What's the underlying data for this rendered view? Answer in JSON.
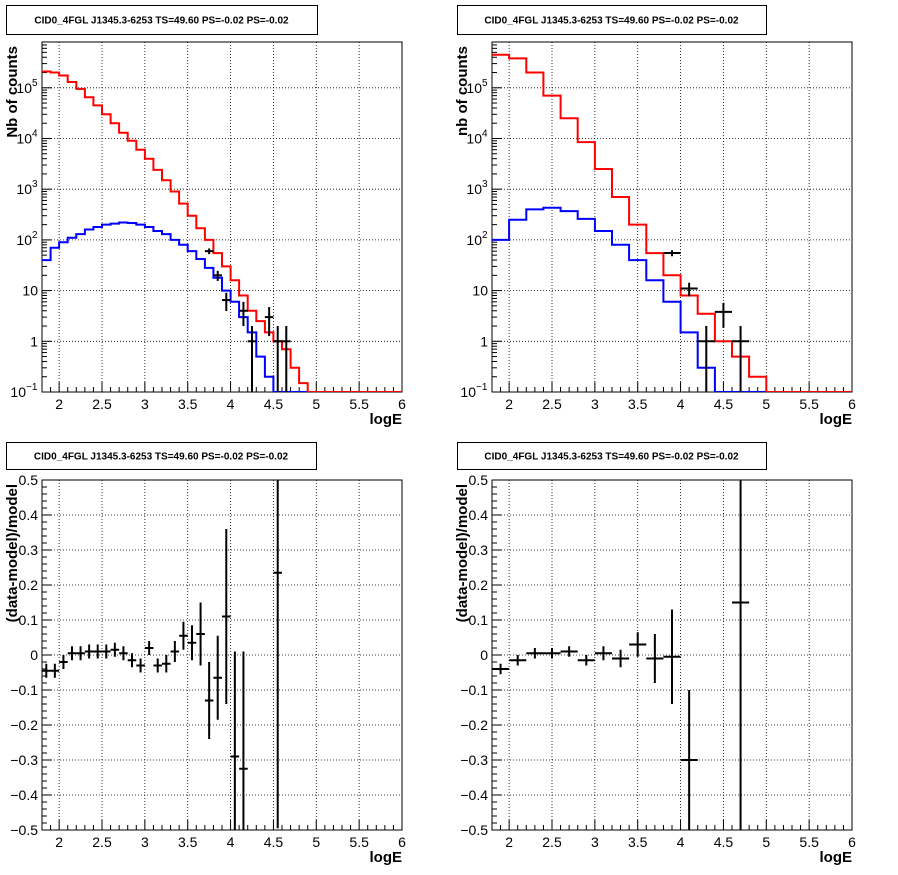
{
  "colors": {
    "data": "#000000",
    "total_model": "#ff0000",
    "source_model": "#0000ff",
    "grid": "#000000",
    "title_box": "#000000"
  },
  "chart_data": [
    {
      "type": "line",
      "title": "CID0_4FGL J1345.3-6253 TS=49.60 PS=-0.02 PS=-0.02",
      "xlabel": "logE",
      "ylabel": "Nb of counts",
      "xlim": [
        1.8,
        6
      ],
      "ylim": [
        0.1,
        800000
      ],
      "yscale": "log",
      "grid": true,
      "x_ticks": [
        "2",
        "2.5",
        "3",
        "3.5",
        "4",
        "4.5",
        "5",
        "5.5",
        "6"
      ],
      "y_ticks": [
        {
          "v": 0.1,
          "label": "10",
          "sup": "−1"
        },
        {
          "v": 1,
          "label": "1",
          "sup": ""
        },
        {
          "v": 10,
          "label": "10",
          "sup": ""
        },
        {
          "v": 100,
          "label": "10",
          "sup": "2"
        },
        {
          "v": 1000,
          "label": "10",
          "sup": "3"
        },
        {
          "v": 10000,
          "label": "10",
          "sup": "4"
        },
        {
          "v": 100000,
          "label": "10",
          "sup": "5"
        }
      ],
      "bin_edges": [
        1.8,
        1.9,
        2.0,
        2.1,
        2.2,
        2.3,
        2.4,
        2.5,
        2.6,
        2.7,
        2.8,
        2.9,
        3.0,
        3.1,
        3.2,
        3.3,
        3.4,
        3.5,
        3.6,
        3.7,
        3.8,
        3.9,
        4.0,
        4.1,
        4.2,
        4.3,
        4.4,
        4.5,
        4.6,
        4.7,
        4.8,
        4.9,
        5.0,
        5.1,
        5.2,
        5.3,
        5.4,
        5.5,
        5.6,
        5.7,
        5.8,
        5.9,
        6.0
      ],
      "series": [
        {
          "values": [
            210000,
            200000,
            175000,
            130000,
            95000,
            65000,
            45000,
            30000,
            20000,
            13000,
            9000,
            6000,
            4000,
            2400,
            1500,
            900,
            520,
            300,
            170,
            100,
            55,
            30,
            16,
            8,
            4,
            2.5,
            1.5,
            1,
            0.7,
            0.3,
            0.15,
            0.1,
            0.1,
            0.1,
            0.1,
            0.1,
            0.1,
            0.1,
            0.1,
            0.1,
            0.1,
            0.1
          ]
        },
        {
          "values": [
            40,
            70,
            90,
            110,
            130,
            160,
            180,
            200,
            210,
            220,
            215,
            200,
            180,
            150,
            130,
            100,
            80,
            60,
            42,
            28,
            18,
            10,
            6,
            3,
            1.5,
            0.5,
            0.2,
            0.1,
            0.1,
            0.1,
            0.1,
            0.1,
            0.1,
            0.1,
            0.1,
            0.1,
            0.1,
            0.1,
            0.1,
            0.1,
            0.1,
            0.1
          ]
        }
      ],
      "points": [
        {
          "x": 3.75,
          "y": 60
        },
        {
          "x": 3.85,
          "y": 20
        },
        {
          "x": 3.95,
          "y": 6.5
        },
        {
          "x": 4.15,
          "y": 4
        },
        {
          "x": 4.25,
          "y": 1
        },
        {
          "x": 4.45,
          "y": 3
        },
        {
          "x": 4.55,
          "y": 1
        },
        {
          "x": 4.65,
          "y": 1
        }
      ]
    },
    {
      "type": "line",
      "title": "CID0_4FGL J1345.3-6253 TS=49.60 PS=-0.02 PS=-0.02",
      "xlabel": "logE",
      "ylabel": "nb of counts",
      "xlim": [
        1.8,
        6
      ],
      "ylim": [
        0.1,
        800000
      ],
      "yscale": "log",
      "grid": true,
      "x_ticks": [
        "2",
        "2.5",
        "3",
        "3.5",
        "4",
        "4.5",
        "5",
        "5.5",
        "6"
      ],
      "y_ticks": [
        {
          "v": 0.1,
          "label": "10",
          "sup": "−1"
        },
        {
          "v": 1,
          "label": "1",
          "sup": ""
        },
        {
          "v": 10,
          "label": "10",
          "sup": ""
        },
        {
          "v": 100,
          "label": "10",
          "sup": "2"
        },
        {
          "v": 1000,
          "label": "10",
          "sup": "3"
        },
        {
          "v": 10000,
          "label": "10",
          "sup": "4"
        },
        {
          "v": 100000,
          "label": "10",
          "sup": "5"
        }
      ],
      "bin_edges": [
        1.8,
        2.0,
        2.2,
        2.4,
        2.6,
        2.8,
        3.0,
        3.2,
        3.4,
        3.6,
        3.8,
        4.0,
        4.2,
        4.4,
        4.6,
        4.8,
        5.0,
        5.2,
        5.4,
        5.6,
        5.8,
        6.0
      ],
      "series": [
        {
          "values": [
            450000,
            380000,
            200000,
            70000,
            25000,
            8500,
            2500,
            700,
            200,
            55,
            20,
            8,
            3.5,
            1,
            0.5,
            0.2,
            0.1,
            0.1,
            0.1,
            0.1,
            0.1
          ]
        },
        {
          "values": [
            100,
            250,
            400,
            430,
            370,
            260,
            150,
            80,
            40,
            16,
            6,
            1.5,
            0.3,
            0.1,
            0.1,
            0.1,
            0.1,
            0.1,
            0.1,
            0.1,
            0.1
          ]
        }
      ],
      "points": [
        {
          "x": 3.9,
          "y": 55
        },
        {
          "x": 4.1,
          "y": 11
        },
        {
          "x": 4.3,
          "y": 1
        },
        {
          "x": 4.5,
          "y": 3.8
        },
        {
          "x": 4.7,
          "y": 1
        }
      ]
    },
    {
      "type": "scatter",
      "title": "CID0_4FGL J1345.3-6253 TS=49.60 PS=-0.02 PS=-0.02",
      "xlabel": "logE",
      "ylabel": "(data-model)/model",
      "xlim": [
        1.8,
        6
      ],
      "ylim": [
        -0.5,
        0.5
      ],
      "grid": true,
      "x_ticks": [
        "2",
        "2.5",
        "3",
        "3.5",
        "4",
        "4.5",
        "5",
        "5.5",
        "6"
      ],
      "y_ticks": [
        {
          "v": -0.5,
          "label": "−0.5"
        },
        {
          "v": -0.4,
          "label": "−0.4"
        },
        {
          "v": -0.3,
          "label": "−0.3"
        },
        {
          "v": -0.2,
          "label": "−0.2"
        },
        {
          "v": -0.1,
          "label": "−0.1"
        },
        {
          "v": 0,
          "label": "0"
        },
        {
          "v": 0.1,
          "label": "0.1"
        },
        {
          "v": 0.2,
          "label": "0.2"
        },
        {
          "v": 0.3,
          "label": "0.3"
        },
        {
          "v": 0.4,
          "label": "0.4"
        },
        {
          "v": 0.5,
          "label": "0.5"
        }
      ],
      "points": [
        {
          "x": 1.85,
          "y": -0.045,
          "err": 0.02
        },
        {
          "x": 1.95,
          "y": -0.045,
          "err": 0.02
        },
        {
          "x": 2.05,
          "y": -0.02,
          "err": 0.02
        },
        {
          "x": 2.15,
          "y": 0.005,
          "err": 0.02
        },
        {
          "x": 2.25,
          "y": 0.005,
          "err": 0.02
        },
        {
          "x": 2.35,
          "y": 0.01,
          "err": 0.02
        },
        {
          "x": 2.45,
          "y": 0.01,
          "err": 0.02
        },
        {
          "x": 2.55,
          "y": 0.01,
          "err": 0.02
        },
        {
          "x": 2.65,
          "y": 0.015,
          "err": 0.02
        },
        {
          "x": 2.75,
          "y": 0.005,
          "err": 0.02
        },
        {
          "x": 2.85,
          "y": -0.015,
          "err": 0.02
        },
        {
          "x": 2.95,
          "y": -0.03,
          "err": 0.02
        },
        {
          "x": 3.05,
          "y": 0.02,
          "err": 0.02
        },
        {
          "x": 3.15,
          "y": -0.03,
          "err": 0.02
        },
        {
          "x": 3.25,
          "y": -0.025,
          "err": 0.025
        },
        {
          "x": 3.35,
          "y": 0.01,
          "err": 0.03
        },
        {
          "x": 3.45,
          "y": 0.055,
          "err": 0.04
        },
        {
          "x": 3.55,
          "y": 0.035,
          "err": 0.05
        },
        {
          "x": 3.65,
          "y": 0.06,
          "err": 0.09
        },
        {
          "x": 3.75,
          "y": -0.13,
          "err": 0.11
        },
        {
          "x": 3.85,
          "y": -0.065,
          "err": 0.12
        },
        {
          "x": 3.95,
          "y": 0.11,
          "err": 0.25
        },
        {
          "x": 4.05,
          "y": -0.29,
          "err": 0.3
        },
        {
          "x": 4.15,
          "y": -0.325,
          "err": 0.335
        },
        {
          "x": 4.55,
          "y": 0.235,
          "err": 0.73
        }
      ]
    },
    {
      "type": "scatter",
      "title": "CID0_4FGL J1345.3-6253 TS=49.60 PS=-0.02 PS=-0.02",
      "xlabel": "logE",
      "ylabel": "(data-model)/model",
      "xlim": [
        1.8,
        6
      ],
      "ylim": [
        -0.5,
        0.5
      ],
      "grid": true,
      "x_ticks": [
        "2",
        "2.5",
        "3",
        "3.5",
        "4",
        "4.5",
        "5",
        "5.5",
        "6"
      ],
      "y_ticks": [
        {
          "v": -0.5,
          "label": "−0.5"
        },
        {
          "v": -0.4,
          "label": "−0.4"
        },
        {
          "v": -0.3,
          "label": "−0.3"
        },
        {
          "v": -0.2,
          "label": "−0.2"
        },
        {
          "v": -0.1,
          "label": "−0.1"
        },
        {
          "v": 0,
          "label": "0"
        },
        {
          "v": 0.1,
          "label": "0.1"
        },
        {
          "v": 0.2,
          "label": "0.2"
        },
        {
          "v": 0.3,
          "label": "0.3"
        },
        {
          "v": 0.4,
          "label": "0.4"
        },
        {
          "v": 0.5,
          "label": "0.5"
        }
      ],
      "points": [
        {
          "x": 1.9,
          "y": -0.04,
          "err": 0.015
        },
        {
          "x": 2.1,
          "y": -0.015,
          "err": 0.015
        },
        {
          "x": 2.3,
          "y": 0.005,
          "err": 0.015
        },
        {
          "x": 2.5,
          "y": 0.005,
          "err": 0.015
        },
        {
          "x": 2.7,
          "y": 0.01,
          "err": 0.015
        },
        {
          "x": 2.9,
          "y": -0.015,
          "err": 0.015
        },
        {
          "x": 3.1,
          "y": 0.005,
          "err": 0.02
        },
        {
          "x": 3.3,
          "y": -0.01,
          "err": 0.025
        },
        {
          "x": 3.5,
          "y": 0.03,
          "err": 0.035
        },
        {
          "x": 3.7,
          "y": -0.01,
          "err": 0.07
        },
        {
          "x": 3.9,
          "y": -0.005,
          "err": 0.135
        },
        {
          "x": 4.1,
          "y": -0.3,
          "err": 0.2
        },
        {
          "x": 4.7,
          "y": 0.15,
          "err": 0.65
        }
      ]
    }
  ]
}
